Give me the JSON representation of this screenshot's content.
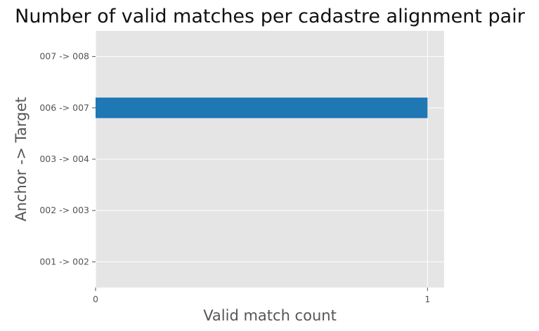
{
  "chart_data": {
    "type": "bar",
    "orientation": "horizontal",
    "title": "Number of valid matches per cadastre alignment pair",
    "xlabel": "Valid match count",
    "ylabel": "Anchor -> Target",
    "categories": [
      "001 -> 002",
      "002 -> 003",
      "003 -> 004",
      "006 -> 007",
      "007 -> 008"
    ],
    "values": [
      0,
      0,
      0,
      1,
      0
    ],
    "xlim": [
      0,
      1.05
    ],
    "xticks": [
      0,
      1
    ],
    "grid": true,
    "bar_color": "#1f77b4",
    "plot_background": "#e5e5e5"
  }
}
